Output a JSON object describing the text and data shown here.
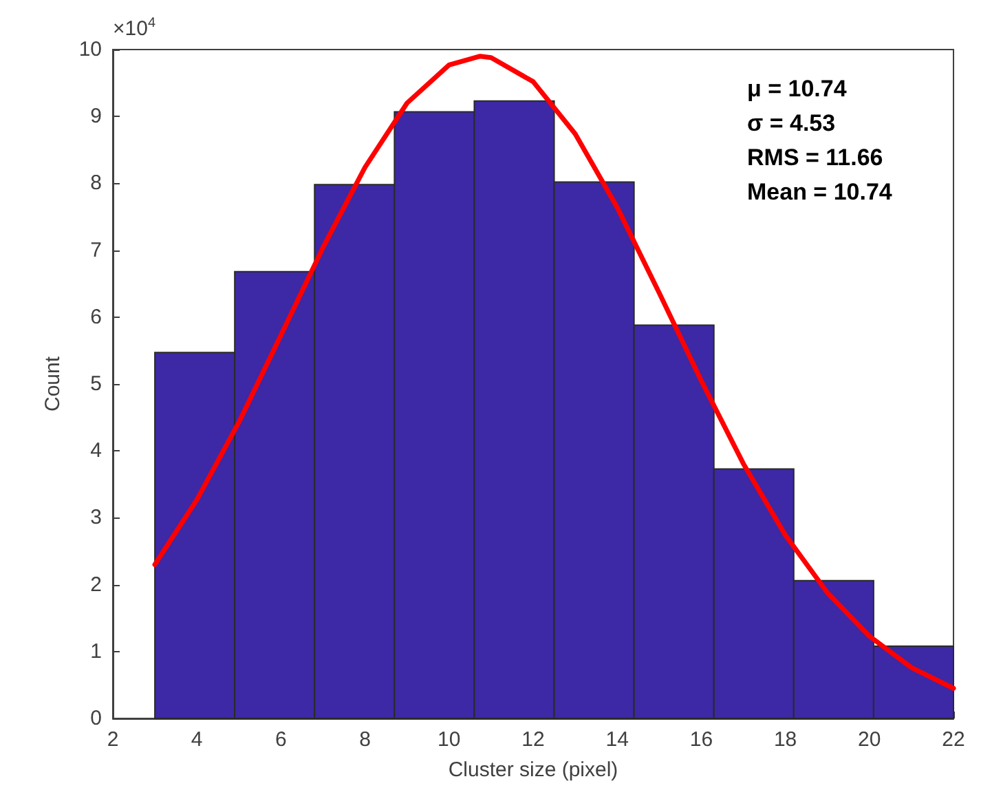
{
  "chart_data": {
    "type": "histogram",
    "xlabel": "Cluster size (pixel)",
    "ylabel": "Count",
    "bins": [
      3,
      4.9,
      6.8,
      8.7,
      10.6,
      12.5,
      14.4,
      16.3,
      18.2,
      20.1,
      22
    ],
    "values": [
      5.47,
      6.68,
      7.98,
      9.07,
      9.23,
      8.02,
      5.88,
      3.73,
      2.06,
      1.08
    ],
    "color": "#3d28a6",
    "series": [
      {
        "type": "line",
        "color": "#ff0000",
        "x": [
          3,
          4,
          5,
          6,
          7,
          8,
          9,
          10,
          10.74,
          11,
          12,
          13,
          14,
          15,
          16,
          17,
          18,
          19,
          20,
          21,
          22
        ],
        "values": [
          2.3,
          3.27,
          4.43,
          5.73,
          7.04,
          8.24,
          9.2,
          9.77,
          9.9,
          9.88,
          9.52,
          8.74,
          7.64,
          6.36,
          5.05,
          3.81,
          2.74,
          1.88,
          1.23,
          0.76,
          0.45
        ]
      }
    ],
    "xlim": [
      2,
      22
    ],
    "xticks": [
      2,
      4,
      6,
      8,
      10,
      12,
      14,
      16,
      18,
      20,
      22
    ],
    "ylim": [
      0,
      10
    ],
    "yticks": [
      0,
      1,
      2,
      3,
      4,
      5,
      6,
      7,
      8,
      9,
      10
    ],
    "grid": false,
    "line_style": "solid",
    "annotations": [
      "×10$^{4}$",
      "μ = 10.74",
      "σ = 4.53",
      "RMS = 11.66",
      "Mean = 10.74"
    ]
  }
}
